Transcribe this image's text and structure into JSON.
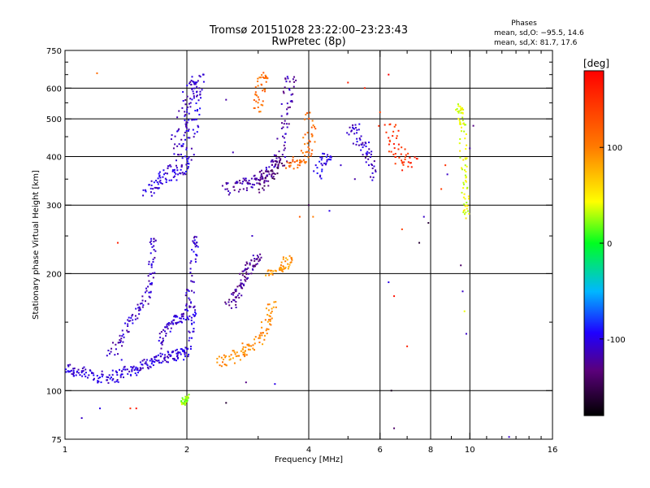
{
  "chart_data": {
    "type": "scatter",
    "title": "Tromsø 20151028 23:22:00–23:23:43",
    "subtitle": "RwPretec (8p)",
    "xlabel": "Frequency [MHz]",
    "ylabel": "Stationary phase Virtual Height [km]",
    "xscale": "log",
    "yscale": "log",
    "xlim": [
      1,
      16
    ],
    "ylim": [
      75,
      750
    ],
    "x_ticks": [
      1,
      2,
      4,
      6,
      8,
      10,
      16
    ],
    "x_minor_ticks": [
      3,
      5,
      7,
      9,
      11,
      12,
      13,
      14,
      15
    ],
    "y_ticks": [
      75,
      100,
      200,
      300,
      400,
      500,
      600,
      750
    ],
    "y_minor_ticks": [
      150,
      250,
      350,
      450,
      550,
      650,
      700
    ],
    "x_gridlines": [
      2,
      4,
      6,
      8,
      10
    ],
    "y_gridlines": [
      100,
      200,
      300,
      400,
      500,
      600
    ],
    "legend_stats": {
      "heading": "Phases",
      "line1": "mean, sd,O: −95.5, 14.6",
      "line2": "mean, sd,X:  81.7, 17.6"
    },
    "colorbar": {
      "label": "[deg]",
      "min": -180,
      "max": 180,
      "tick_values": [
        100,
        0,
        -100
      ],
      "tick_labels": [
        "100",
        "0",
        "-100"
      ]
    },
    "traces": [
      {
        "points": [
          [
            1.0,
            115
          ],
          [
            1.03,
            113
          ],
          [
            1.06,
            112
          ],
          [
            1.1,
            111
          ],
          [
            1.15,
            110
          ],
          [
            1.2,
            109
          ],
          [
            1.25,
            108
          ],
          [
            1.3,
            109
          ],
          [
            1.35,
            109
          ],
          [
            1.4,
            112
          ],
          [
            1.45,
            113
          ],
          [
            1.5,
            113
          ],
          [
            1.55,
            116
          ],
          [
            1.6,
            118
          ],
          [
            1.65,
            119
          ],
          [
            1.7,
            120
          ],
          [
            1.75,
            121
          ],
          [
            1.8,
            123
          ],
          [
            1.85,
            123
          ],
          [
            1.9,
            124
          ],
          [
            1.95,
            124
          ],
          [
            2.0,
            126
          ],
          [
            2.05,
            140
          ],
          [
            2.08,
            155
          ],
          [
            2.1,
            165
          ]
        ],
        "phase": -105,
        "spread": [
          0.015,
          4
        ]
      },
      {
        "points": [
          [
            1.28,
            125
          ],
          [
            1.35,
            130
          ],
          [
            1.4,
            140
          ],
          [
            1.45,
            150
          ],
          [
            1.5,
            158
          ],
          [
            1.55,
            165
          ],
          [
            1.6,
            175
          ],
          [
            1.62,
            190
          ],
          [
            1.64,
            210
          ],
          [
            1.65,
            235
          ],
          [
            1.66,
            250
          ]
        ],
        "phase": -110,
        "spread": [
          0.02,
          5
        ]
      },
      {
        "points": [
          [
            1.7,
            130
          ],
          [
            1.75,
            140
          ],
          [
            1.8,
            145
          ],
          [
            1.85,
            150
          ],
          [
            1.9,
            152
          ],
          [
            1.95,
            155
          ],
          [
            2.0,
            158
          ],
          [
            2.02,
            170
          ],
          [
            2.05,
            185
          ],
          [
            2.08,
            220
          ],
          [
            2.1,
            240
          ],
          [
            2.12,
            245
          ]
        ],
        "phase": -108,
        "spread": [
          0.02,
          5
        ]
      },
      {
        "points": [
          [
            2.55,
            165
          ],
          [
            2.6,
            170
          ],
          [
            2.65,
            175
          ],
          [
            2.7,
            182
          ],
          [
            2.75,
            190
          ],
          [
            2.8,
            200
          ],
          [
            2.85,
            208
          ],
          [
            2.9,
            212
          ],
          [
            2.95,
            218
          ],
          [
            3.0,
            220
          ]
        ],
        "phase": -125,
        "spread": [
          0.03,
          5
        ]
      },
      {
        "points": [
          [
            2.4,
            118
          ],
          [
            2.5,
            120
          ],
          [
            2.6,
            122
          ],
          [
            2.7,
            125
          ],
          [
            2.8,
            128
          ],
          [
            2.9,
            130
          ],
          [
            3.0,
            135
          ],
          [
            3.1,
            140
          ],
          [
            3.15,
            150
          ],
          [
            3.2,
            160
          ],
          [
            3.25,
            170
          ]
        ],
        "phase": 95,
        "spread": [
          0.03,
          4
        ]
      },
      {
        "points": [
          [
            3.2,
            200
          ],
          [
            3.3,
            202
          ],
          [
            3.4,
            205
          ],
          [
            3.5,
            210
          ],
          [
            3.55,
            215
          ],
          [
            3.6,
            220
          ]
        ],
        "phase": 90,
        "spread": [
          0.03,
          4
        ]
      },
      {
        "points": [
          [
            1.6,
            330
          ],
          [
            1.65,
            335
          ],
          [
            1.7,
            340
          ],
          [
            1.75,
            350
          ],
          [
            1.8,
            360
          ],
          [
            1.85,
            365
          ],
          [
            1.9,
            370
          ],
          [
            1.95,
            380
          ],
          [
            2.0,
            390
          ],
          [
            2.02,
            420
          ],
          [
            2.04,
            460
          ],
          [
            2.06,
            500
          ],
          [
            2.08,
            540
          ],
          [
            2.1,
            580
          ],
          [
            2.12,
            620
          ],
          [
            2.14,
            650
          ]
        ],
        "phase": -105,
        "spread": [
          0.04,
          15
        ]
      },
      {
        "points": [
          [
            1.85,
            400
          ],
          [
            1.9,
            450
          ],
          [
            1.95,
            500
          ],
          [
            2.0,
            550
          ],
          [
            2.05,
            600
          ],
          [
            2.1,
            630
          ]
        ],
        "phase": -112,
        "spread": [
          0.04,
          15
        ]
      },
      {
        "points": [
          [
            2.5,
            330
          ],
          [
            2.6,
            332
          ],
          [
            2.7,
            335
          ],
          [
            2.8,
            340
          ],
          [
            2.9,
            345
          ],
          [
            3.0,
            350
          ],
          [
            3.1,
            358
          ],
          [
            3.2,
            370
          ],
          [
            3.3,
            385
          ],
          [
            3.4,
            400
          ],
          [
            3.45,
            450
          ],
          [
            3.5,
            500
          ],
          [
            3.55,
            560
          ],
          [
            3.6,
            620
          ],
          [
            3.62,
            650
          ]
        ],
        "phase": -118,
        "spread": [
          0.03,
          12
        ]
      },
      {
        "points": [
          [
            3.0,
            330
          ],
          [
            3.1,
            345
          ],
          [
            3.2,
            355
          ],
          [
            3.3,
            370
          ],
          [
            3.4,
            380
          ],
          [
            3.5,
            390
          ]
        ],
        "phase": -140,
        "spread": [
          0.04,
          10
        ]
      },
      {
        "points": [
          [
            3.0,
            520
          ],
          [
            3.02,
            560
          ],
          [
            3.05,
            600
          ],
          [
            3.08,
            640
          ],
          [
            3.1,
            650
          ]
        ],
        "phase": 110,
        "spread": [
          0.03,
          10
        ]
      },
      {
        "points": [
          [
            3.6,
            380
          ],
          [
            3.7,
            385
          ],
          [
            3.8,
            390
          ],
          [
            3.9,
            400
          ],
          [
            4.0,
            430
          ],
          [
            4.02,
            470
          ],
          [
            4.05,
            520
          ]
        ],
        "phase": 112,
        "spread": [
          0.04,
          10
        ]
      },
      {
        "points": [
          [
            4.2,
            360
          ],
          [
            4.3,
            380
          ],
          [
            4.4,
            400
          ],
          [
            4.5,
            390
          ]
        ],
        "phase": -100,
        "spread": [
          0.03,
          10
        ]
      },
      {
        "points": [
          [
            5.1,
            460
          ],
          [
            5.2,
            480
          ],
          [
            5.3,
            440
          ],
          [
            5.5,
            430
          ],
          [
            5.6,
            410
          ],
          [
            5.7,
            380
          ],
          [
            5.8,
            350
          ]
        ],
        "phase": -110,
        "spread": [
          0.03,
          10
        ]
      },
      {
        "points": [
          [
            9.4,
            520
          ],
          [
            9.5,
            540
          ],
          [
            9.55,
            500
          ],
          [
            9.6,
            470
          ],
          [
            9.65,
            400
          ],
          [
            9.7,
            360
          ],
          [
            9.75,
            320
          ],
          [
            9.78,
            300
          ],
          [
            9.8,
            280
          ]
        ],
        "phase": 40,
        "spread": [
          0.02,
          10
        ]
      },
      {
        "points": [
          [
            6.2,
            480
          ],
          [
            6.4,
            460
          ],
          [
            6.6,
            420
          ],
          [
            6.8,
            400
          ],
          [
            7.0,
            380
          ],
          [
            7.2,
            390
          ]
        ],
        "phase": 150,
        "spread": [
          0.05,
          15
        ]
      },
      {
        "points": [
          [
            1.95,
            92
          ],
          [
            1.97,
            94
          ],
          [
            2.0,
            95
          ],
          [
            2.02,
            96
          ]
        ],
        "phase": 25,
        "spread": [
          0.01,
          2
        ]
      }
    ],
    "sparse_points": [
      [
        1.2,
        655,
        110
      ],
      [
        1.35,
        240,
        160
      ],
      [
        1.45,
        90,
        150
      ],
      [
        1.5,
        90,
        170
      ],
      [
        1.22,
        90,
        -100
      ],
      [
        1.38,
        120,
        -100
      ],
      [
        2.5,
        93,
        -160
      ],
      [
        2.8,
        105,
        -130
      ],
      [
        3.3,
        104,
        -100
      ],
      [
        2.9,
        250,
        -110
      ],
      [
        4.5,
        290,
        -100
      ],
      [
        5.0,
        620,
        160
      ],
      [
        5.5,
        600,
        160
      ],
      [
        6.0,
        520,
        140
      ],
      [
        6.3,
        650,
        180
      ],
      [
        6.5,
        175,
        170
      ],
      [
        6.3,
        190,
        -100
      ],
      [
        6.4,
        100,
        -170
      ],
      [
        6.5,
        80,
        -140
      ],
      [
        6.8,
        260,
        140
      ],
      [
        7.0,
        130,
        160
      ],
      [
        7.5,
        240,
        -160
      ],
      [
        7.7,
        280,
        -110
      ],
      [
        7.9,
        270,
        -160
      ],
      [
        8.5,
        330,
        140
      ],
      [
        8.7,
        380,
        150
      ],
      [
        8.8,
        360,
        -110
      ],
      [
        9.5,
        210,
        -140
      ],
      [
        9.6,
        180,
        -110
      ],
      [
        9.7,
        160,
        40
      ],
      [
        9.8,
        140,
        -110
      ],
      [
        10.0,
        420,
        -120
      ],
      [
        10.2,
        480,
        -130
      ],
      [
        12.5,
        76,
        -110
      ],
      [
        1.1,
        85,
        -110
      ],
      [
        2.2,
        650,
        -110
      ],
      [
        2.5,
        560,
        -120
      ],
      [
        2.6,
        410,
        -115
      ],
      [
        3.8,
        280,
        120
      ],
      [
        4.0,
        300,
        -150
      ],
      [
        4.1,
        280,
        100
      ],
      [
        4.8,
        380,
        -110
      ],
      [
        5.2,
        350,
        -120
      ]
    ]
  }
}
